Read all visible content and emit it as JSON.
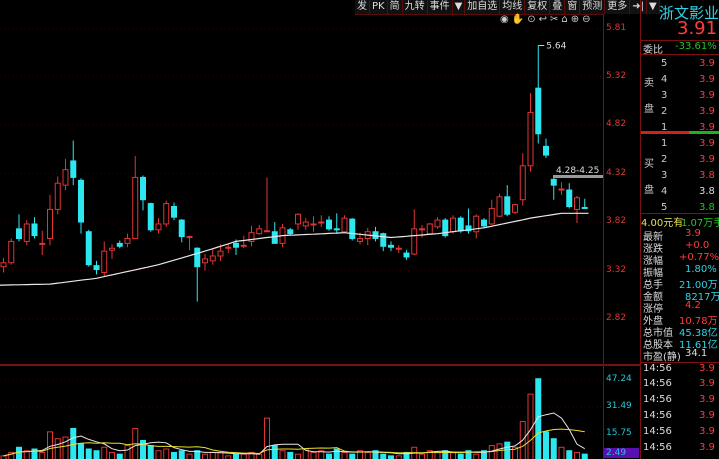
{
  "toolbar": {
    "items": [
      "发",
      "PK",
      "简",
      "九转",
      "事件",
      "▼",
      "加自选",
      "均线",
      "复权",
      "叠",
      "窗",
      "预测",
      "更多",
      "➜|",
      "▼"
    ]
  },
  "chart_icons": [
    "eye-icon",
    "hand-icon",
    "play-circle-icon",
    "undo-icon",
    "scissors-icon",
    "lock-icon",
    "zoom-in-icon",
    "zoom-out-icon"
  ],
  "colors": {
    "up": "#e03535",
    "down": "#2ce6f0",
    "ma": "#e8e8e8",
    "vol_ma1": "#e8e8e8",
    "vol_ma2": "#e6e030",
    "grid": "#5a0c0c"
  },
  "stock": {
    "name": "浙文影业",
    "price": "3.91",
    "weibi_label": "委比",
    "weibi": "-33.61%"
  },
  "order_book": {
    "sell_label": [
      "卖",
      "盘"
    ],
    "buy_label": [
      "买",
      "盘"
    ],
    "sell": [
      {
        "level": "5",
        "price": "3.9"
      },
      {
        "level": "4",
        "price": "3.9"
      },
      {
        "level": "3",
        "price": "3.9"
      },
      {
        "level": "2",
        "price": "3.9"
      },
      {
        "level": "1",
        "price": "3.9"
      }
    ],
    "buy": [
      {
        "level": "1",
        "price": "3.9",
        "c": "red"
      },
      {
        "level": "2",
        "price": "3.9",
        "c": "red"
      },
      {
        "level": "3",
        "price": "3.8",
        "c": "red"
      },
      {
        "level": "4",
        "price": "3.8",
        "c": "white"
      },
      {
        "level": "5",
        "price": "3.8",
        "c": "green"
      }
    ],
    "note_price": "4.00元有",
    "note_qty": "1.07万手"
  },
  "stats": [
    {
      "label": "最新",
      "value": "3.9",
      "c": "red"
    },
    {
      "label": "涨跌",
      "value": "+0.0",
      "c": "red"
    },
    {
      "label": "涨幅",
      "value": "+0.77%",
      "c": "red"
    },
    {
      "label": "振幅",
      "value": "1.80%",
      "c": "cyan"
    },
    {
      "label": "总手",
      "value": "21.00万",
      "c": "cyan"
    },
    {
      "label": "金额",
      "value": "8217万",
      "c": "cyan"
    },
    {
      "label": "涨停",
      "value": "4.2",
      "c": "red"
    },
    {
      "label": "外盘",
      "value": "10.78万",
      "c": "red"
    },
    {
      "label": "总市值",
      "value": "45.38亿",
      "c": "cyan"
    },
    {
      "label": "总股本",
      "value": "11.61亿",
      "c": "cyan"
    },
    {
      "label": "市盈(静)",
      "value": "34.1",
      "c": "white"
    }
  ],
  "ticks": [
    {
      "time": "14:56",
      "price": "3.9"
    },
    {
      "time": "14:56",
      "price": "3.9"
    },
    {
      "time": "14:56",
      "price": "3.9"
    },
    {
      "time": "14:56",
      "price": "3.9"
    },
    {
      "time": "14:56",
      "price": "3.9"
    },
    {
      "time": "14:56",
      "price": "3.9"
    }
  ],
  "chart_data": {
    "type": "candlestick",
    "price_axis": {
      "ticks": [
        "5.81",
        "5.32",
        "4.82",
        "4.32",
        "3.82",
        "3.32",
        "2.82"
      ],
      "range": [
        2.82,
        5.81
      ]
    },
    "volume_axis": {
      "ticks": [
        "47.24",
        "31.49",
        "15.75"
      ],
      "current": "2.49"
    },
    "annotations": {
      "high_label": "5.64",
      "range_label": "4.28-4.25"
    },
    "ohlc": [
      [
        3.36,
        3.45,
        3.3,
        3.4
      ],
      [
        3.4,
        3.65,
        3.38,
        3.62
      ],
      [
        3.75,
        3.9,
        3.62,
        3.65
      ],
      [
        3.62,
        3.84,
        3.58,
        3.8
      ],
      [
        3.8,
        3.87,
        3.65,
        3.68
      ],
      [
        3.6,
        3.73,
        3.48,
        3.6
      ],
      [
        3.65,
        4.1,
        3.58,
        3.95
      ],
      [
        3.95,
        4.29,
        3.9,
        4.22
      ],
      [
        4.2,
        4.47,
        4.15,
        4.36
      ],
      [
        4.45,
        4.66,
        4.2,
        4.28
      ],
      [
        4.25,
        4.27,
        3.7,
        3.82
      ],
      [
        3.72,
        3.74,
        3.36,
        3.38
      ],
      [
        3.37,
        3.42,
        3.28,
        3.33
      ],
      [
        3.3,
        3.62,
        3.26,
        3.52
      ],
      [
        3.53,
        3.59,
        3.44,
        3.55
      ],
      [
        3.6,
        3.63,
        3.55,
        3.57
      ],
      [
        3.6,
        3.7,
        3.56,
        3.65
      ],
      [
        3.65,
        4.5,
        3.65,
        4.28
      ],
      [
        4.28,
        4.3,
        3.94,
        4.05
      ],
      [
        4.01,
        4.02,
        3.72,
        3.74
      ],
      [
        3.74,
        3.86,
        3.7,
        3.8
      ],
      [
        3.8,
        4.04,
        3.77,
        4.01
      ],
      [
        3.98,
        4.02,
        3.84,
        3.87
      ],
      [
        3.84,
        3.85,
        3.61,
        3.67
      ],
      [
        3.66,
        3.68,
        3.53,
        3.67
      ],
      [
        3.55,
        3.56,
        3.0,
        3.36
      ],
      [
        3.4,
        3.49,
        3.32,
        3.44
      ],
      [
        3.42,
        3.54,
        3.38,
        3.47
      ],
      [
        3.47,
        3.59,
        3.42,
        3.52
      ],
      [
        3.56,
        3.6,
        3.5,
        3.56
      ],
      [
        3.6,
        3.64,
        3.48,
        3.56
      ],
      [
        3.58,
        3.68,
        3.55,
        3.58
      ],
      [
        3.62,
        3.78,
        3.57,
        3.71
      ],
      [
        3.7,
        3.79,
        3.69,
        3.75
      ],
      [
        3.73,
        4.28,
        3.72,
        3.73
      ],
      [
        3.72,
        3.82,
        3.6,
        3.6
      ],
      [
        3.6,
        3.8,
        3.56,
        3.76
      ],
      [
        3.74,
        3.76,
        3.68,
        3.7
      ],
      [
        3.8,
        3.91,
        3.74,
        3.9
      ],
      [
        3.78,
        3.86,
        3.74,
        3.82
      ],
      [
        3.8,
        3.88,
        3.72,
        3.8
      ],
      [
        3.82,
        3.89,
        3.77,
        3.82
      ],
      [
        3.84,
        3.88,
        3.73,
        3.75
      ],
      [
        3.75,
        3.91,
        3.7,
        3.74
      ],
      [
        3.72,
        3.89,
        3.71,
        3.86
      ],
      [
        3.85,
        3.86,
        3.63,
        3.65
      ],
      [
        3.62,
        3.71,
        3.59,
        3.65
      ],
      [
        3.65,
        3.76,
        3.58,
        3.72
      ],
      [
        3.72,
        3.77,
        3.62,
        3.65
      ],
      [
        3.7,
        3.71,
        3.52,
        3.57
      ],
      [
        3.58,
        3.62,
        3.52,
        3.56
      ],
      [
        3.55,
        3.58,
        3.5,
        3.55
      ],
      [
        3.5,
        3.53,
        3.43,
        3.46
      ],
      [
        3.49,
        3.95,
        3.48,
        3.75
      ],
      [
        3.75,
        3.79,
        3.66,
        3.75
      ],
      [
        3.7,
        3.81,
        3.69,
        3.8
      ],
      [
        3.77,
        3.87,
        3.75,
        3.84
      ],
      [
        3.84,
        3.86,
        3.66,
        3.68
      ],
      [
        3.72,
        3.89,
        3.7,
        3.86
      ],
      [
        3.86,
        3.88,
        3.71,
        3.73
      ],
      [
        3.78,
        3.96,
        3.7,
        3.73
      ],
      [
        3.72,
        3.9,
        3.65,
        3.88
      ],
      [
        3.84,
        3.86,
        3.76,
        3.78
      ],
      [
        3.8,
        4.05,
        3.79,
        3.96
      ],
      [
        3.88,
        4.11,
        3.87,
        4.08
      ],
      [
        4.08,
        4.2,
        3.88,
        3.9
      ],
      [
        3.92,
        4.01,
        3.9,
        4.0
      ],
      [
        4.05,
        4.53,
        3.99,
        4.4
      ],
      [
        4.4,
        5.15,
        4.34,
        4.95
      ],
      [
        5.2,
        5.64,
        4.63,
        4.73
      ],
      [
        4.6,
        4.68,
        4.48,
        4.51
      ],
      [
        4.26,
        4.28,
        4.05,
        4.2
      ],
      [
        4.16,
        4.23,
        4.1,
        4.16
      ],
      [
        4.15,
        4.22,
        3.96,
        3.98
      ],
      [
        3.95,
        4.09,
        3.81,
        4.07
      ],
      [
        3.97,
        4.06,
        3.96,
        3.96
      ]
    ],
    "volume": [
      3,
      5,
      8,
      6,
      7,
      5,
      17,
      13,
      14,
      19,
      10,
      7,
      6,
      8,
      5,
      4,
      9,
      19,
      12,
      9,
      6,
      7,
      5,
      6,
      4,
      6,
      4,
      5,
      5,
      3,
      4,
      4,
      5,
      4,
      25,
      9,
      6,
      5,
      4,
      7,
      5,
      6,
      4,
      7,
      5,
      4,
      6,
      5,
      6,
      4,
      3,
      3,
      5,
      8,
      4,
      6,
      5,
      6,
      5,
      4,
      6,
      4,
      6,
      9,
      10,
      11,
      8,
      23,
      39,
      48,
      17,
      13,
      8,
      6,
      5,
      4
    ],
    "ma_points": [
      [
        0,
        3.17
      ],
      [
        6,
        3.18
      ],
      [
        12,
        3.24
      ],
      [
        20,
        3.38
      ],
      [
        26,
        3.52
      ],
      [
        30,
        3.62
      ],
      [
        36,
        3.68
      ],
      [
        44,
        3.71
      ],
      [
        50,
        3.66
      ],
      [
        56,
        3.7
      ],
      [
        62,
        3.76
      ],
      [
        68,
        3.86
      ],
      [
        72,
        3.91
      ],
      [
        75,
        3.91
      ]
    ]
  }
}
